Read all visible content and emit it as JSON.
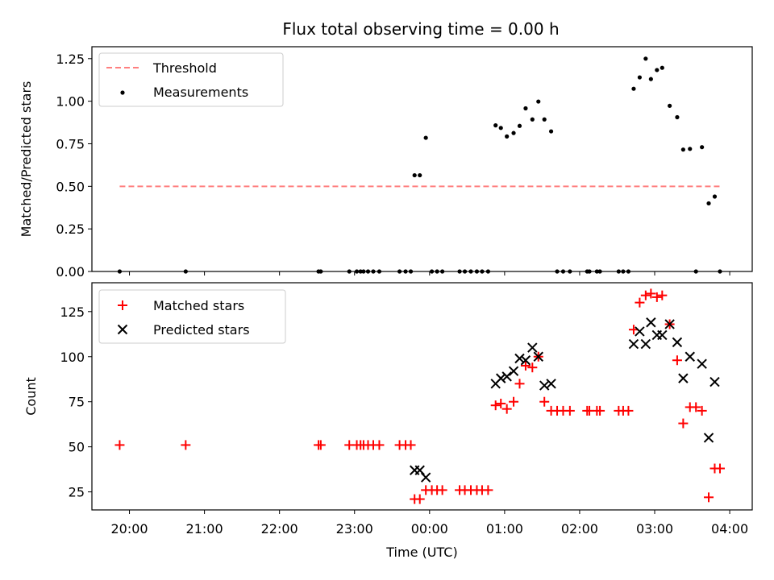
{
  "title": "Flux total observing time = 0.00 h",
  "x_axis": {
    "label": "Time (UTC)",
    "ticks": [
      {
        "value": 20,
        "label": "20:00"
      },
      {
        "value": 21,
        "label": "21:00"
      },
      {
        "value": 22,
        "label": "22:00"
      },
      {
        "value": 23,
        "label": "23:00"
      },
      {
        "value": 24,
        "label": "00:00"
      },
      {
        "value": 25,
        "label": "01:00"
      },
      {
        "value": 26,
        "label": "02:00"
      },
      {
        "value": 27,
        "label": "03:00"
      },
      {
        "value": 28,
        "label": "04:00"
      }
    ]
  },
  "colors": {
    "threshold": "#ff7f7f",
    "measurements": "#000000",
    "matched": "#ff0000",
    "predicted": "#000000"
  },
  "chart_data": [
    {
      "type": "scatter",
      "panel": "top",
      "ylabel": "Matched/Predicted stars",
      "xlim": [
        19.5,
        28.3
      ],
      "ylim": [
        0,
        1.32
      ],
      "yticks": [
        {
          "value": 0.0,
          "label": "0.00"
        },
        {
          "value": 0.25,
          "label": "0.25"
        },
        {
          "value": 0.5,
          "label": "0.50"
        },
        {
          "value": 0.75,
          "label": "0.75"
        },
        {
          "value": 1.0,
          "label": "1.00"
        },
        {
          "value": 1.25,
          "label": "1.25"
        }
      ],
      "legend": {
        "position": "top-left",
        "entries": [
          "Threshold",
          "Measurements"
        ]
      },
      "threshold": {
        "name": "Threshold",
        "value": 0.5,
        "x_range": [
          19.87,
          27.87
        ]
      },
      "series": [
        {
          "name": "Measurements",
          "marker": "dot",
          "x": [
            19.87,
            20.75,
            22.52,
            22.55,
            22.93,
            23.03,
            23.08,
            23.12,
            23.18,
            23.25,
            23.33,
            23.6,
            23.68,
            23.75,
            23.8,
            23.87,
            23.95,
            24.03,
            24.1,
            24.17,
            24.4,
            24.47,
            24.55,
            24.63,
            24.7,
            24.78,
            24.88,
            24.95,
            25.03,
            25.12,
            25.2,
            25.28,
            25.37,
            25.45,
            25.53,
            25.62,
            25.7,
            25.78,
            25.87,
            26.1,
            26.13,
            26.23,
            26.27,
            26.52,
            26.58,
            26.65,
            26.72,
            26.8,
            26.88,
            26.95,
            27.03,
            27.1,
            27.2,
            27.3,
            27.38,
            27.47,
            27.55,
            27.63,
            27.72,
            27.8,
            27.87
          ],
          "y": [
            0,
            0,
            0,
            0,
            0,
            0,
            0,
            0,
            0,
            0,
            0,
            0,
            0,
            0,
            0.565,
            0.565,
            0.785,
            0,
            0,
            0,
            0,
            0,
            0,
            0,
            0,
            0,
            0.858,
            0.843,
            0.793,
            0.813,
            0.855,
            0.958,
            0.893,
            0.998,
            0.893,
            0.823,
            0,
            0,
            0,
            0,
            0,
            0,
            0,
            0,
            0,
            0,
            1.073,
            1.14,
            1.25,
            1.13,
            1.183,
            1.196,
            0.973,
            0.906,
            0.716,
            0.72,
            0,
            0.73,
            0.4,
            0.44,
            0
          ]
        }
      ]
    },
    {
      "type": "scatter",
      "panel": "bottom",
      "xlabel": "Time (UTC)",
      "ylabel": "Count",
      "xlim": [
        19.5,
        28.3
      ],
      "ylim": [
        15,
        141
      ],
      "yticks": [
        {
          "value": 25,
          "label": "25"
        },
        {
          "value": 50,
          "label": "50"
        },
        {
          "value": 75,
          "label": "75"
        },
        {
          "value": 100,
          "label": "100"
        },
        {
          "value": 125,
          "label": "125"
        }
      ],
      "legend": {
        "position": "top-left",
        "entries": [
          "Matched stars",
          "Predicted stars"
        ]
      },
      "series": [
        {
          "name": "Matched stars",
          "marker": "plus",
          "x": [
            19.87,
            20.75,
            22.52,
            22.55,
            22.93,
            23.03,
            23.08,
            23.12,
            23.18,
            23.25,
            23.33,
            23.6,
            23.68,
            23.75,
            23.8,
            23.87,
            23.95,
            24.03,
            24.1,
            24.17,
            24.4,
            24.47,
            24.55,
            24.63,
            24.7,
            24.78,
            24.88,
            24.95,
            25.03,
            25.12,
            25.2,
            25.28,
            25.37,
            25.45,
            25.53,
            25.62,
            25.7,
            25.78,
            25.87,
            26.1,
            26.13,
            26.23,
            26.27,
            26.52,
            26.58,
            26.65,
            26.72,
            26.8,
            26.88,
            26.95,
            27.03,
            27.1,
            27.2,
            27.3,
            27.38,
            27.47,
            27.55,
            27.63,
            27.72,
            27.8,
            27.87
          ],
          "y": [
            51,
            51,
            51,
            51,
            51,
            51,
            51,
            51,
            51,
            51,
            51,
            51,
            51,
            51,
            21,
            21,
            26,
            26,
            26,
            26,
            26,
            26,
            26,
            26,
            26,
            26,
            73,
            74,
            71,
            75,
            85,
            95,
            94,
            100,
            75,
            70,
            70,
            70,
            70,
            70,
            70,
            70,
            70,
            70,
            70,
            70,
            115,
            130,
            134,
            135,
            133,
            134,
            118,
            98,
            63,
            72,
            72,
            70,
            22,
            38,
            38
          ]
        },
        {
          "name": "Predicted stars",
          "marker": "cross",
          "x": [
            23.8,
            23.87,
            23.95,
            24.88,
            24.95,
            25.03,
            25.12,
            25.2,
            25.28,
            25.37,
            25.45,
            25.53,
            25.62,
            26.72,
            26.8,
            26.88,
            26.95,
            27.03,
            27.1,
            27.2,
            27.3,
            27.38,
            27.47,
            27.63,
            27.72,
            27.8
          ],
          "y": [
            37,
            37,
            33,
            85,
            88,
            89,
            92,
            99,
            98,
            105,
            100,
            84,
            85,
            107,
            114,
            107,
            119,
            112,
            112,
            118,
            108,
            88,
            100,
            96,
            55,
            86
          ]
        }
      ]
    }
  ]
}
